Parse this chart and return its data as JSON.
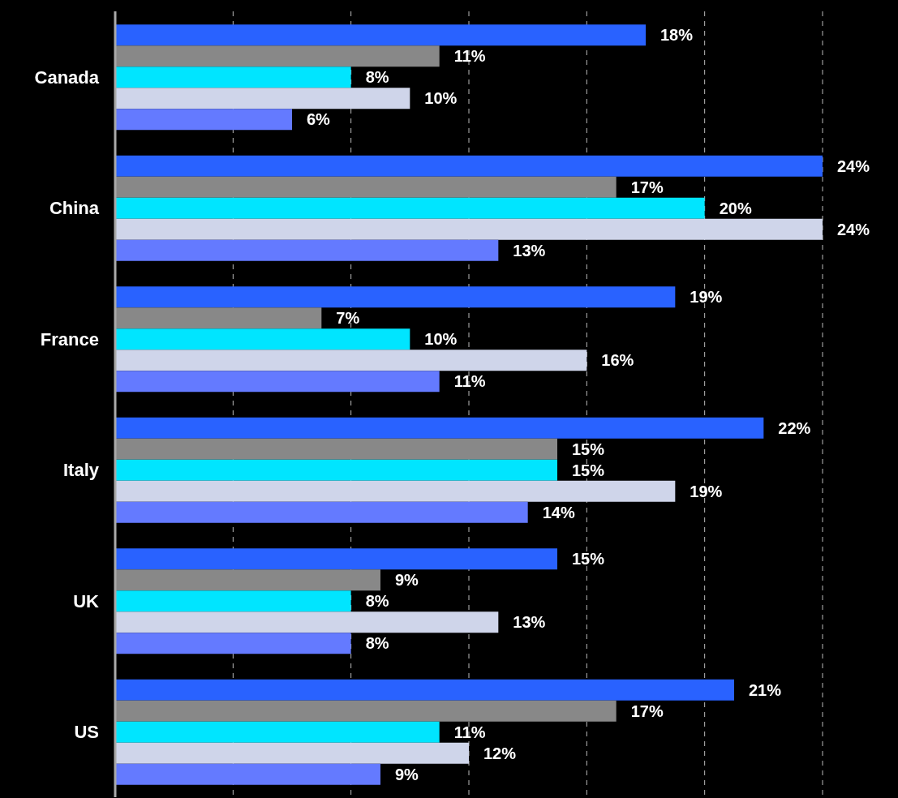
{
  "chart_data": {
    "type": "bar",
    "orientation": "horizontal",
    "categories": [
      "Canada",
      "China",
      "France",
      "Italy",
      "UK",
      "US"
    ],
    "series": [
      {
        "color": "#2962ff",
        "values": [
          18,
          24,
          19,
          22,
          15,
          21
        ],
        "value_labels": [
          "18%",
          "24%",
          "19%",
          "22%",
          "15%",
          "21%"
        ]
      },
      {
        "color": "#888888",
        "values": [
          11,
          17,
          7,
          15,
          9,
          17
        ],
        "value_labels": [
          "11%",
          "17%",
          "7%",
          "15%",
          "9%",
          "17%"
        ]
      },
      {
        "color": "#00e5ff",
        "values": [
          8,
          20,
          10,
          15,
          8,
          11
        ],
        "value_labels": [
          "8%",
          "20%",
          "10%",
          "15%",
          "8%",
          "11%"
        ]
      },
      {
        "color": "#cfd5ea",
        "values": [
          10,
          24,
          16,
          19,
          13,
          12
        ],
        "value_labels": [
          "10%",
          "24%",
          "16%",
          "19%",
          "13%",
          "12%"
        ]
      },
      {
        "color": "#647aff",
        "values": [
          6,
          13,
          11,
          14,
          8,
          9
        ],
        "value_labels": [
          "6%",
          "13%",
          "11%",
          "14%",
          "8%",
          "9%"
        ]
      }
    ],
    "xlim": [
      0,
      24
    ],
    "grid": "x",
    "legend": false,
    "tick_labels": "y"
  }
}
